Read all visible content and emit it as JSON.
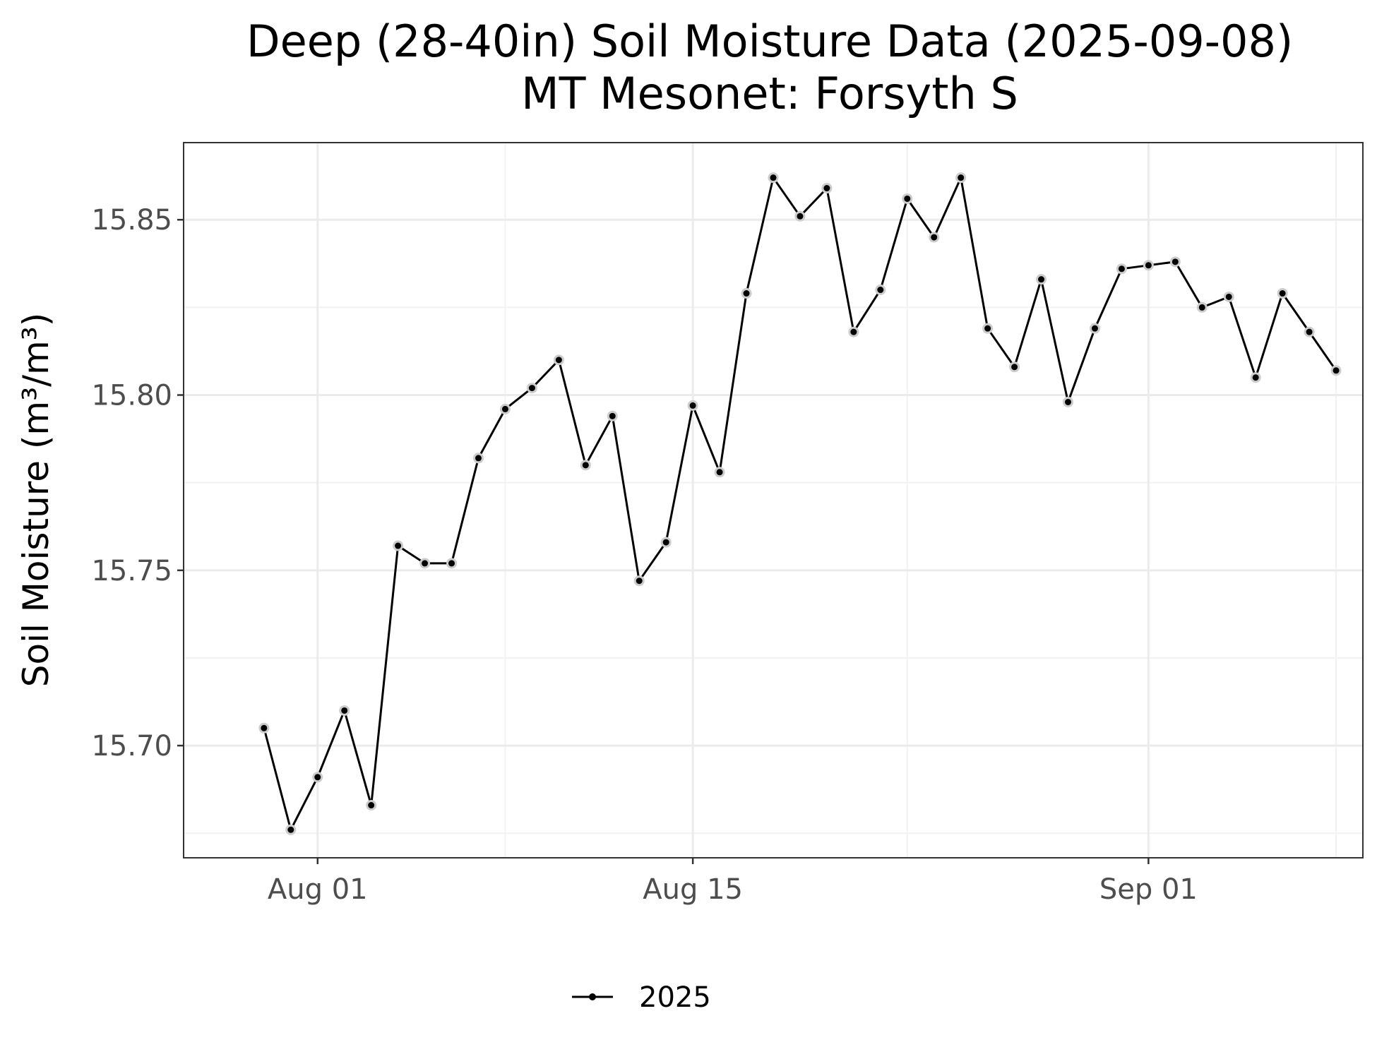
{
  "chart_data": {
    "type": "line",
    "title": "Deep (28-40in) Soil Moisture Data (2025-09-08)",
    "subtitle": "MT Mesonet: Forsyth S",
    "xlabel": "",
    "ylabel": "Soil Moisture (m³/m³)",
    "ylim": [
      15.668,
      15.872
    ],
    "xlim": [
      "2025-07-27",
      "2025-09-09"
    ],
    "y_ticks": [
      15.7,
      15.75,
      15.8,
      15.85
    ],
    "y_tick_labels": [
      "15.70",
      "15.75",
      "15.80",
      "15.85"
    ],
    "y_minor_ticks": [
      15.675,
      15.725,
      15.775,
      15.825
    ],
    "x_ticks": [
      "2025-08-01",
      "2025-08-15",
      "2025-09-01"
    ],
    "x_tick_labels": [
      "Aug 01",
      "Aug 15",
      "Sep 01"
    ],
    "x_minor_ticks": [
      "2025-08-08",
      "2025-08-23",
      "2025-09-08"
    ],
    "grid": true,
    "legend_position": "bottom",
    "series": [
      {
        "name": "2025",
        "color": "#000000",
        "x": [
          "2025-07-30",
          "2025-07-31",
          "2025-08-01",
          "2025-08-02",
          "2025-08-03",
          "2025-08-04",
          "2025-08-05",
          "2025-08-06",
          "2025-08-07",
          "2025-08-08",
          "2025-08-09",
          "2025-08-10",
          "2025-08-11",
          "2025-08-12",
          "2025-08-13",
          "2025-08-14",
          "2025-08-15",
          "2025-08-16",
          "2025-08-17",
          "2025-08-18",
          "2025-08-19",
          "2025-08-20",
          "2025-08-21",
          "2025-08-22",
          "2025-08-23",
          "2025-08-24",
          "2025-08-25",
          "2025-08-26",
          "2025-08-27",
          "2025-08-28",
          "2025-08-29",
          "2025-08-30",
          "2025-08-31",
          "2025-09-01",
          "2025-09-02",
          "2025-09-03",
          "2025-09-04",
          "2025-09-05",
          "2025-09-06",
          "2025-09-07",
          "2025-09-08"
        ],
        "values": [
          15.705,
          15.676,
          15.691,
          15.71,
          15.683,
          15.757,
          15.752,
          15.752,
          15.782,
          15.796,
          15.802,
          15.81,
          15.78,
          15.794,
          15.747,
          15.758,
          15.797,
          15.778,
          15.829,
          15.862,
          15.851,
          15.859,
          15.818,
          15.83,
          15.856,
          15.845,
          15.862,
          15.819,
          15.808,
          15.833,
          15.798,
          15.819,
          15.836,
          15.837,
          15.838,
          15.825,
          15.828,
          15.805,
          15.829,
          15.818,
          15.807
        ]
      }
    ]
  }
}
